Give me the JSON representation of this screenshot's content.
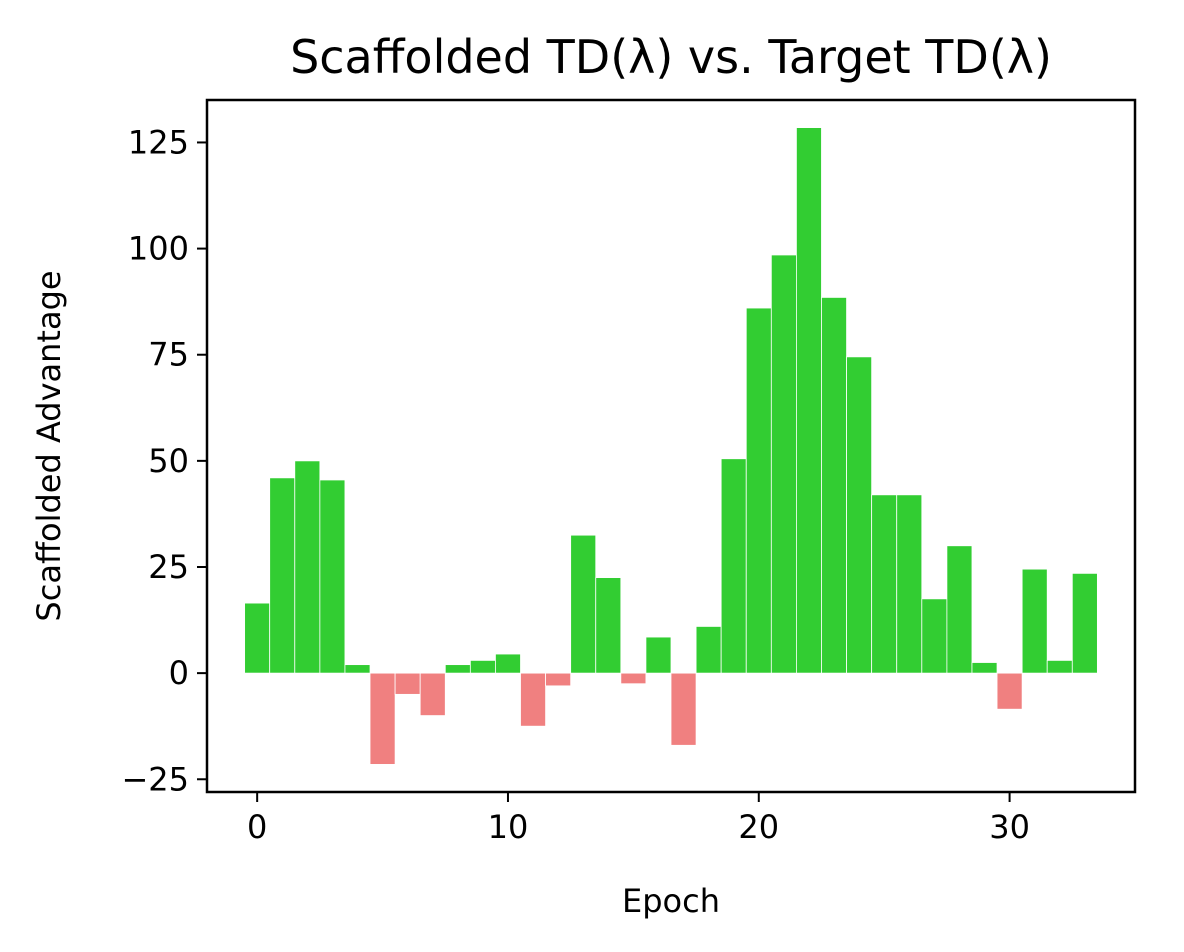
{
  "chart_data": {
    "type": "bar",
    "title": "Scaffolded TD(λ) vs. Target TD(λ)",
    "xlabel": "Epoch",
    "ylabel": "Scaffolded Advantage",
    "x": [
      0,
      1,
      2,
      3,
      4,
      5,
      6,
      7,
      8,
      9,
      10,
      11,
      12,
      13,
      14,
      15,
      16,
      17,
      18,
      19,
      20,
      21,
      22,
      23,
      24,
      25,
      26,
      27,
      28,
      29,
      30,
      31,
      32,
      33
    ],
    "values": [
      16.5,
      46.0,
      50.0,
      45.5,
      2.0,
      -21.5,
      -5.0,
      -10.0,
      2.0,
      3.0,
      4.5,
      -12.5,
      -3.0,
      32.5,
      22.5,
      -2.5,
      8.5,
      -17.0,
      11.0,
      50.5,
      86.0,
      98.5,
      128.5,
      88.5,
      74.5,
      42.0,
      42.0,
      17.5,
      30.0,
      2.5,
      -8.5,
      24.5,
      3.0,
      23.5
    ],
    "xlim": [
      -2.0,
      35.0
    ],
    "ylim": [
      -28.0,
      135.0
    ],
    "xticks": [
      0,
      10,
      20,
      30
    ],
    "xtick_labels": [
      "0",
      "10",
      "20",
      "30"
    ],
    "yticks": [
      -25,
      0,
      25,
      50,
      75,
      100,
      125
    ],
    "ytick_labels": [
      "−25",
      "0",
      "25",
      "50",
      "75",
      "100",
      "125"
    ],
    "positive_color": "#32cd32",
    "negative_color": "#f08080",
    "grid": false,
    "legend": "none"
  }
}
